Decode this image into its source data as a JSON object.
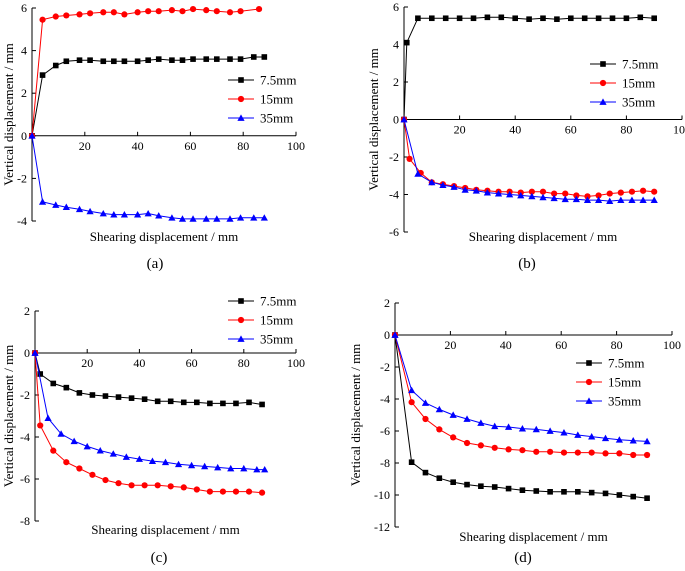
{
  "colors": {
    "s7_5": "#000000",
    "s15": "#ff0000",
    "s35": "#0000ff"
  },
  "chart_data": [
    {
      "type": "line",
      "panel_label": "(a)",
      "xlabel": "Shearing displacement / mm",
      "ylabel": "Vertical displacement / mm",
      "xlim": [
        0,
        100
      ],
      "ylim": [
        -4,
        6
      ],
      "xticks": [
        "0",
        "20",
        "40",
        "60",
        "80",
        "100"
      ],
      "yticks": [
        "-4",
        "-2",
        "0",
        "2",
        "4",
        "6"
      ],
      "legend_position": "right-middle",
      "series": [
        {
          "name": "7.5mm",
          "marker": "square",
          "color": "#000000",
          "x": [
            0,
            4,
            9,
            13,
            18,
            22,
            27,
            31,
            35,
            40,
            44,
            48,
            53,
            57,
            61,
            66,
            70,
            75,
            79,
            84,
            88
          ],
          "y": [
            0,
            2.85,
            3.3,
            3.5,
            3.55,
            3.55,
            3.5,
            3.5,
            3.5,
            3.5,
            3.55,
            3.6,
            3.55,
            3.55,
            3.6,
            3.6,
            3.6,
            3.6,
            3.6,
            3.7,
            3.7
          ]
        },
        {
          "name": "15mm",
          "marker": "circle",
          "color": "#ff0000",
          "x": [
            0,
            4,
            9,
            13,
            18,
            22,
            27,
            31,
            35,
            40,
            44,
            48,
            53,
            57,
            61,
            66,
            70,
            75,
            79,
            86
          ],
          "y": [
            0,
            5.45,
            5.6,
            5.65,
            5.7,
            5.75,
            5.8,
            5.8,
            5.7,
            5.8,
            5.85,
            5.85,
            5.9,
            5.85,
            5.95,
            5.9,
            5.85,
            5.8,
            5.85,
            5.95
          ]
        },
        {
          "name": "35mm",
          "marker": "triangle",
          "color": "#0000ff",
          "x": [
            0,
            4,
            9,
            13,
            18,
            22,
            27,
            31,
            35,
            40,
            44,
            48,
            53,
            57,
            61,
            66,
            70,
            75,
            79,
            84,
            88
          ],
          "y": [
            0,
            -3.1,
            -3.25,
            -3.35,
            -3.45,
            -3.55,
            -3.65,
            -3.7,
            -3.7,
            -3.7,
            -3.65,
            -3.75,
            -3.85,
            -3.9,
            -3.9,
            -3.9,
            -3.9,
            -3.9,
            -3.85,
            -3.85,
            -3.85
          ]
        }
      ]
    },
    {
      "type": "line",
      "panel_label": "(b)",
      "xlabel": "Shearing displacement / mm",
      "ylabel": "Vertical displacement / mm",
      "xlim": [
        0,
        100
      ],
      "ylim": [
        -6,
        6
      ],
      "xticks": [
        "0",
        "20",
        "40",
        "60",
        "80",
        "100"
      ],
      "yticks": [
        "-6",
        "-4",
        "-2",
        "0",
        "2",
        "4",
        "6"
      ],
      "legend_position": "right-middle",
      "series": [
        {
          "name": "7.5mm",
          "marker": "square",
          "color": "#000000",
          "x": [
            0,
            1,
            5,
            10,
            15,
            20,
            25,
            30,
            35,
            40,
            45,
            50,
            55,
            60,
            65,
            70,
            75,
            80,
            85,
            90
          ],
          "y": [
            0,
            4.1,
            5.4,
            5.4,
            5.4,
            5.4,
            5.4,
            5.45,
            5.45,
            5.4,
            5.35,
            5.4,
            5.35,
            5.4,
            5.4,
            5.4,
            5.4,
            5.4,
            5.45,
            5.4
          ]
        },
        {
          "name": "15mm",
          "marker": "circle",
          "color": "#ff0000",
          "x": [
            0,
            2,
            6,
            10,
            14,
            18,
            22,
            26,
            30,
            34,
            38,
            42,
            46,
            50,
            54,
            58,
            62,
            66,
            70,
            74,
            78,
            82,
            86,
            90
          ],
          "y": [
            0,
            -2.1,
            -2.85,
            -3.35,
            -3.45,
            -3.55,
            -3.65,
            -3.75,
            -3.8,
            -3.85,
            -3.85,
            -3.9,
            -3.85,
            -3.85,
            -3.95,
            -3.95,
            -4.05,
            -4.1,
            -4.05,
            -3.95,
            -3.9,
            -3.85,
            -3.8,
            -3.85
          ]
        },
        {
          "name": "35mm",
          "marker": "triangle",
          "color": "#0000ff",
          "x": [
            0,
            5,
            10,
            14,
            18,
            22,
            26,
            30,
            34,
            38,
            42,
            46,
            50,
            54,
            58,
            62,
            66,
            70,
            74,
            78,
            82,
            86,
            90
          ],
          "y": [
            0,
            -2.9,
            -3.35,
            -3.5,
            -3.6,
            -3.75,
            -3.8,
            -3.9,
            -3.95,
            -4.0,
            -4.05,
            -4.1,
            -4.15,
            -4.2,
            -4.25,
            -4.25,
            -4.3,
            -4.3,
            -4.35,
            -4.3,
            -4.3,
            -4.3,
            -4.3
          ]
        }
      ]
    },
    {
      "type": "line",
      "panel_label": "(c)",
      "xlabel": "Shearing displacement / mm",
      "ylabel": "Vertical displacement / mm",
      "xlim": [
        0,
        100
      ],
      "ylim": [
        -8,
        2
      ],
      "xticks": [
        "0",
        "20",
        "40",
        "60",
        "80",
        "100"
      ],
      "yticks": [
        "-8",
        "-6",
        "-4",
        "-2",
        "0",
        "2"
      ],
      "legend_position": "top-right",
      "series": [
        {
          "name": "7.5mm",
          "marker": "square",
          "color": "#000000",
          "x": [
            0,
            2,
            7,
            12,
            17,
            22,
            27,
            32,
            37,
            42,
            47,
            52,
            57,
            62,
            67,
            72,
            77,
            82,
            87
          ],
          "y": [
            0,
            -1.0,
            -1.45,
            -1.65,
            -1.9,
            -2.0,
            -2.05,
            -2.1,
            -2.15,
            -2.2,
            -2.3,
            -2.3,
            -2.35,
            -2.35,
            -2.4,
            -2.4,
            -2.4,
            -2.35,
            -2.45
          ]
        },
        {
          "name": "15mm",
          "marker": "circle",
          "color": "#ff0000",
          "x": [
            0,
            2,
            7,
            12,
            17,
            22,
            27,
            32,
            37,
            42,
            47,
            52,
            57,
            62,
            67,
            72,
            77,
            82,
            87
          ],
          "y": [
            0,
            -3.45,
            -4.65,
            -5.2,
            -5.5,
            -5.8,
            -6.05,
            -6.2,
            -6.3,
            -6.3,
            -6.3,
            -6.35,
            -6.4,
            -6.5,
            -6.6,
            -6.6,
            -6.6,
            -6.6,
            -6.65
          ]
        },
        {
          "name": "35mm",
          "marker": "triangle",
          "color": "#0000ff",
          "x": [
            0,
            5,
            10,
            15,
            20,
            25,
            30,
            35,
            40,
            45,
            50,
            55,
            60,
            65,
            70,
            75,
            80,
            85,
            88
          ],
          "y": [
            0,
            -3.1,
            -3.85,
            -4.2,
            -4.45,
            -4.65,
            -4.8,
            -4.95,
            -5.05,
            -5.15,
            -5.2,
            -5.3,
            -5.35,
            -5.4,
            -5.45,
            -5.5,
            -5.5,
            -5.55,
            -5.55
          ]
        }
      ]
    },
    {
      "type": "line",
      "panel_label": "(d)",
      "xlabel": "Shearing displacement / mm",
      "ylabel": "Vertical displacement / mm",
      "xlim": [
        0,
        100
      ],
      "ylim": [
        -12,
        2
      ],
      "xticks": [
        "0",
        "20",
        "40",
        "60",
        "80",
        "100"
      ],
      "yticks": [
        "-12",
        "-10",
        "-8",
        "-6",
        "-4",
        "-2",
        "0",
        "2"
      ],
      "legend_position": "right-middle",
      "series": [
        {
          "name": "7.5mm",
          "marker": "square",
          "color": "#000000",
          "x": [
            0,
            6,
            11,
            16,
            21,
            26,
            31,
            36,
            41,
            46,
            51,
            56,
            61,
            66,
            71,
            76,
            81,
            86,
            91
          ],
          "y": [
            0,
            -7.95,
            -8.6,
            -8.95,
            -9.2,
            -9.35,
            -9.45,
            -9.5,
            -9.6,
            -9.7,
            -9.75,
            -9.8,
            -9.8,
            -9.8,
            -9.85,
            -9.9,
            -10.0,
            -10.1,
            -10.2
          ]
        },
        {
          "name": "15mm",
          "marker": "circle",
          "color": "#ff0000",
          "x": [
            0,
            6,
            11,
            16,
            21,
            26,
            31,
            36,
            41,
            46,
            51,
            56,
            61,
            66,
            71,
            76,
            81,
            86,
            91
          ],
          "y": [
            0,
            -4.2,
            -5.25,
            -5.9,
            -6.4,
            -6.75,
            -6.9,
            -7.05,
            -7.15,
            -7.2,
            -7.3,
            -7.3,
            -7.35,
            -7.35,
            -7.35,
            -7.4,
            -7.4,
            -7.5,
            -7.5
          ]
        },
        {
          "name": "35mm",
          "marker": "triangle",
          "color": "#0000ff",
          "x": [
            0,
            6,
            11,
            16,
            21,
            26,
            31,
            36,
            41,
            46,
            51,
            56,
            61,
            66,
            71,
            76,
            81,
            86,
            91
          ],
          "y": [
            0,
            -3.45,
            -4.25,
            -4.65,
            -5.0,
            -5.25,
            -5.5,
            -5.7,
            -5.75,
            -5.85,
            -5.9,
            -6.0,
            -6.1,
            -6.25,
            -6.35,
            -6.45,
            -6.55,
            -6.6,
            -6.65
          ]
        }
      ]
    }
  ]
}
